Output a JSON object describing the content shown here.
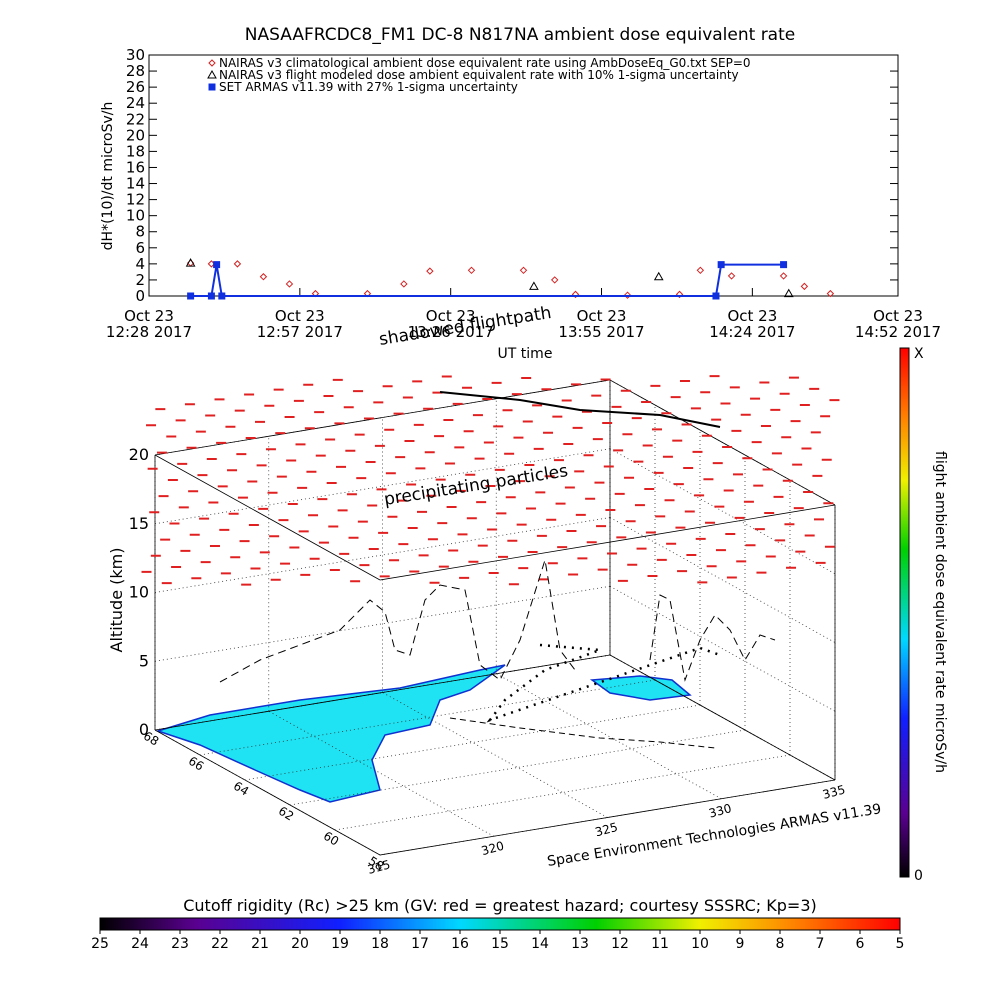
{
  "chart_data": [
    {
      "type": "line",
      "title": "NASAAFRCDC8_FM1 DC-8   N817NA ambient dose equivalent rate",
      "y_label": "dH*(10)/dt microSv/h",
      "x_label": "UT time",
      "xlim": [
        "2017-10-23 12:28",
        "2017-10-23 14:52"
      ],
      "xticks": [
        {
          "value": "2017-10-23 12:28",
          "label": "Oct 23\n12:28 2017"
        },
        {
          "value": "2017-10-23 12:57",
          "label": "Oct 23\n12:57 2017"
        },
        {
          "value": "2017-10-23 13:26",
          "label": "Oct 23\n13:26 2017"
        },
        {
          "value": "2017-10-23 13:55",
          "label": "Oct 23\n13:55 2017"
        },
        {
          "value": "2017-10-23 14:24",
          "label": "Oct 23\n14:24 2017"
        },
        {
          "value": "2017-10-23 14:52",
          "label": "Oct 23\n14:52 2017"
        }
      ],
      "ylim": [
        0,
        30
      ],
      "yticks": [
        0,
        2,
        4,
        6,
        8,
        10,
        12,
        14,
        16,
        18,
        20,
        22,
        24,
        26,
        28,
        30
      ],
      "legend": "top-left",
      "series": [
        {
          "name": "NAIRAS v3 climatological ambient dose equivalent rate using AmbDoseEq_G0.txt SEP=0",
          "color": "#d62020",
          "marker": "diamond",
          "line": false,
          "x": [
            "2017-10-23 12:36",
            "2017-10-23 12:40",
            "2017-10-23 12:45",
            "2017-10-23 12:50",
            "2017-10-23 12:55",
            "2017-10-23 13:00",
            "2017-10-23 13:10",
            "2017-10-23 13:17",
            "2017-10-23 13:22",
            "2017-10-23 13:30",
            "2017-10-23 13:40",
            "2017-10-23 13:46",
            "2017-10-23 13:50",
            "2017-10-23 14:00",
            "2017-10-23 14:10",
            "2017-10-23 14:14",
            "2017-10-23 14:20",
            "2017-10-23 14:30",
            "2017-10-23 14:34",
            "2017-10-23 14:39"
          ],
          "values": [
            4.1,
            4,
            4,
            2.4,
            1.5,
            0.3,
            0.3,
            1.5,
            3.1,
            3.2,
            3.2,
            2,
            0.2,
            0.1,
            0.2,
            3.2,
            2.5,
            2.5,
            1.2,
            0.3
          ]
        },
        {
          "name": "NAIRAS v3 flight modeled dose ambient equivalent rate with 10% 1-sigma uncertainty",
          "color": "#000000",
          "marker": "triangle",
          "line": false,
          "x": [
            "2017-10-23 12:36",
            "2017-10-23 13:42",
            "2017-10-23 14:06",
            "2017-10-23 14:31"
          ],
          "values": [
            4.1,
            1.2,
            2.4,
            0.3
          ]
        },
        {
          "name": "SET ARMAS v11.39 with 27% 1-sigma uncertainty",
          "color": "#1030e0",
          "marker": "square",
          "line": true,
          "x": [
            "2017-10-23 12:36",
            "2017-10-23 12:40",
            "2017-10-23 12:41",
            "2017-10-23 12:42",
            "2017-10-23 14:17",
            "2017-10-23 14:18",
            "2017-10-23 14:30"
          ],
          "values": [
            0,
            0,
            3.9,
            0,
            0,
            3.9,
            3.9
          ]
        }
      ]
    },
    {
      "type": "scatter3d",
      "annotations": [
        "shadowed flightpath",
        "precipitating particles"
      ],
      "z_label": "Altitude (km)",
      "credit": "Space Environment Technologies ARMAS v11.39",
      "zlim": [
        0,
        20
      ],
      "zticks": [
        0,
        5,
        10,
        15,
        20
      ],
      "latlim": [
        58,
        68
      ],
      "latticks": [
        58,
        60,
        62,
        64,
        66,
        68
      ],
      "lonlim": [
        315,
        335
      ],
      "lonticks": [
        315,
        320,
        325,
        330,
        335
      ],
      "dose_colorbar": {
        "title": "flight ambient dose equivalent rate microSv/h",
        "max_label": "X",
        "min": 0
      },
      "rigidity_colorbar": {
        "title": "Cutoff rigidity (Rc) >25 km (GV: red = greatest hazard; courtesy SSSRC; Kp=3)",
        "ticks": [
          25,
          24,
          23,
          22,
          21,
          20,
          19,
          18,
          17,
          16,
          15,
          14,
          13,
          12,
          11,
          10,
          9,
          8,
          7,
          6,
          5
        ]
      }
    }
  ]
}
